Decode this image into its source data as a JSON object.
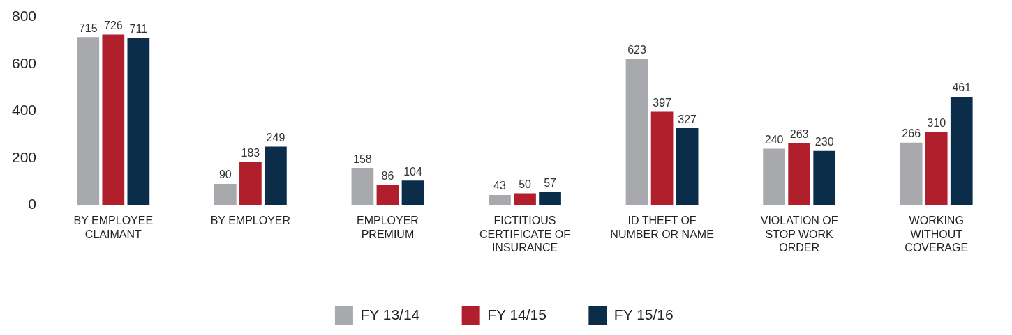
{
  "chart_data": {
    "type": "bar",
    "categories": [
      "BY EMPLOYEE CLAIMANT",
      "BY EMPLOYER",
      "EMPLOYER PREMIUM",
      "FICTITIOUS CERTIFICATE OF INSURANCE",
      "ID THEFT OF NUMBER OR NAME",
      "VIOLATION OF STOP WORK ORDER",
      "WORKING WITHOUT COVERAGE"
    ],
    "series": [
      {
        "name": "FY 13/14",
        "color": "#a7a9ac",
        "values": [
          715,
          90,
          158,
          43,
          623,
          240,
          266
        ]
      },
      {
        "name": "FY 14/15",
        "color": "#b01f2b",
        "values": [
          726,
          183,
          86,
          50,
          397,
          263,
          310
        ]
      },
      {
        "name": "FY 15/16",
        "color": "#0c2d4a",
        "values": [
          711,
          249,
          104,
          57,
          327,
          230,
          461
        ]
      }
    ],
    "ylim": [
      0,
      800
    ],
    "yticks": [
      0,
      200,
      400,
      600,
      800
    ],
    "grid": false,
    "legend": "bottom",
    "data_labels": true
  }
}
